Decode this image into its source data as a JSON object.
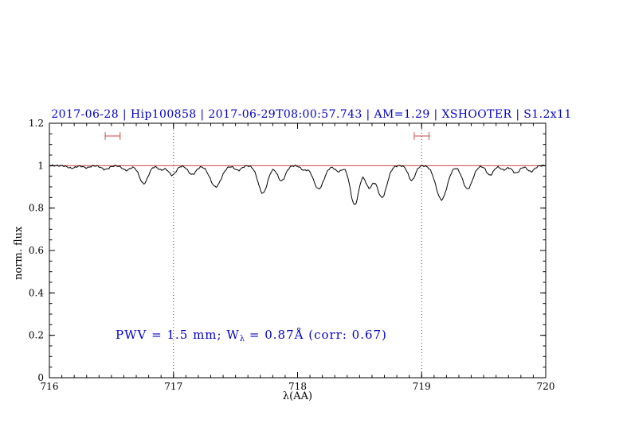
{
  "title": "2017-06-28 | Hip100858 | 2017-06-29T08:00:57.743 | AM=1.29 | XSHOOTER | S1.2x11",
  "annotation": {
    "pre": "PWV = 1.5 mm; W",
    "sub": "λ",
    "post": " = 0.87Å (corr: 0.67)"
  },
  "chart_data": {
    "type": "line",
    "title": "2017-06-28 | Hip100858 | 2017-06-29T08:00:57.743 | AM=1.29 | XSHOOTER | S1.2x11",
    "xlabel": "λ(AA)",
    "ylabel": "norm. flux",
    "xlim": [
      716,
      720
    ],
    "ylim": [
      0,
      1.2
    ],
    "xtick_values": [
      716,
      717,
      718,
      719,
      720
    ],
    "xtick_labels": [
      "716",
      "717",
      "718",
      "719",
      "720"
    ],
    "ytick_values": [
      0,
      0.2,
      0.4,
      0.6,
      0.8,
      1,
      1.2
    ],
    "ytick_labels": [
      "0",
      "0.2",
      "0.4",
      "0.6",
      "0.8",
      "1",
      "1.2"
    ],
    "x_minor_step": 0.1,
    "y_minor_step": 0.05,
    "grid": false,
    "legend": "none",
    "dotted_vlines": [
      717,
      719
    ],
    "reference_line_y": 1.0,
    "colors": {
      "spectrum": "#000000",
      "reference_line": "#cc4444",
      "range_markers": "#cc4444",
      "title_text": "#0000cc",
      "annotation_text": "#0000cc",
      "vline": "#444444",
      "axis": "#000000"
    },
    "range_markers": [
      {
        "x_center": 716.51,
        "half_width": 0.06,
        "y": 1.14,
        "cap_half_height": 0.018
      },
      {
        "x_center": 719.0,
        "half_width": 0.06,
        "y": 1.14,
        "cap_half_height": 0.018
      }
    ],
    "series": [
      {
        "name": "telluric spectrum",
        "model": "continuum minus gaussian absorption lines [center_AA, depth, sigma_AA]",
        "continuum": 1.0,
        "noise_amplitude": 0.004,
        "sample_step": 0.008,
        "absorption_lines": [
          [
            716.18,
            0.012,
            0.03
          ],
          [
            716.3,
            0.01,
            0.025
          ],
          [
            716.45,
            0.018,
            0.03
          ],
          [
            716.62,
            0.022,
            0.03
          ],
          [
            716.76,
            0.085,
            0.035
          ],
          [
            716.9,
            0.02,
            0.025
          ],
          [
            716.99,
            0.045,
            0.03
          ],
          [
            717.15,
            0.042,
            0.032
          ],
          [
            717.34,
            0.1,
            0.045
          ],
          [
            717.52,
            0.022,
            0.028
          ],
          [
            717.72,
            0.13,
            0.038
          ],
          [
            717.87,
            0.072,
            0.032
          ],
          [
            718.05,
            0.02,
            0.025
          ],
          [
            718.17,
            0.11,
            0.042
          ],
          [
            718.33,
            0.028,
            0.028
          ],
          [
            718.46,
            0.185,
            0.035
          ],
          [
            718.575,
            0.1,
            0.03
          ],
          [
            718.68,
            0.15,
            0.04
          ],
          [
            718.92,
            0.07,
            0.028
          ],
          [
            719.16,
            0.16,
            0.045
          ],
          [
            719.37,
            0.11,
            0.04
          ],
          [
            719.55,
            0.045,
            0.028
          ],
          [
            719.66,
            0.02,
            0.025
          ],
          [
            719.76,
            0.035,
            0.03
          ],
          [
            719.88,
            0.028,
            0.028
          ]
        ]
      }
    ]
  }
}
